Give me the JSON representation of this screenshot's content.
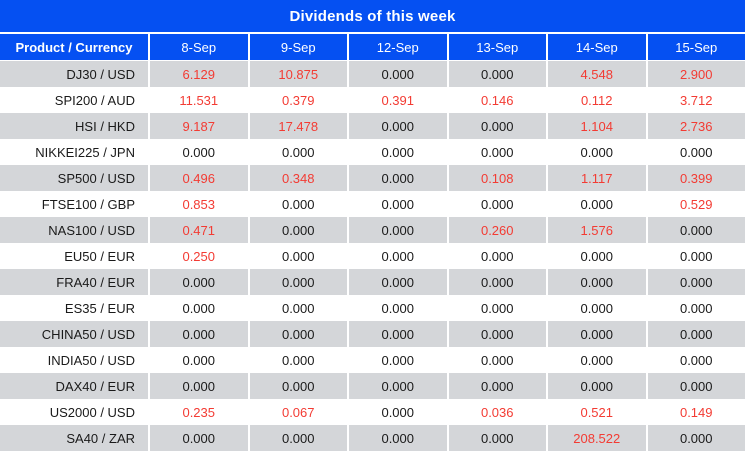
{
  "title": "Dividends of this week",
  "colors": {
    "header_blue": "#0550F2",
    "stripe_gray": "#d4d6d9",
    "value_red": "#f33b33",
    "text_dark": "#1a1a1a",
    "header_text": "#ffffff"
  },
  "table": {
    "corner_header": "Product / Currency",
    "date_headers": [
      "8-Sep",
      "9-Sep",
      "12-Sep",
      "13-Sep",
      "14-Sep",
      "15-Sep"
    ],
    "rows": [
      {
        "product": "DJ30 / USD",
        "values": [
          "6.129",
          "10.875",
          "0.000",
          "0.000",
          "4.548",
          "2.900"
        ]
      },
      {
        "product": "SPI200 / AUD",
        "values": [
          "11.531",
          "0.379",
          "0.391",
          "0.146",
          "0.112",
          "3.712"
        ]
      },
      {
        "product": "HSI / HKD",
        "values": [
          "9.187",
          "17.478",
          "0.000",
          "0.000",
          "1.104",
          "2.736"
        ]
      },
      {
        "product": "NIKKEI225 / JPN",
        "values": [
          "0.000",
          "0.000",
          "0.000",
          "0.000",
          "0.000",
          "0.000"
        ]
      },
      {
        "product": "SP500 / USD",
        "values": [
          "0.496",
          "0.348",
          "0.000",
          "0.108",
          "1.117",
          "0.399"
        ]
      },
      {
        "product": "FTSE100 / GBP",
        "values": [
          "0.853",
          "0.000",
          "0.000",
          "0.000",
          "0.000",
          "0.529"
        ]
      },
      {
        "product": "NAS100 / USD",
        "values": [
          "0.471",
          "0.000",
          "0.000",
          "0.260",
          "1.576",
          "0.000"
        ]
      },
      {
        "product": "EU50 / EUR",
        "values": [
          "0.250",
          "0.000",
          "0.000",
          "0.000",
          "0.000",
          "0.000"
        ]
      },
      {
        "product": "FRA40 / EUR",
        "values": [
          "0.000",
          "0.000",
          "0.000",
          "0.000",
          "0.000",
          "0.000"
        ]
      },
      {
        "product": "ES35 / EUR",
        "values": [
          "0.000",
          "0.000",
          "0.000",
          "0.000",
          "0.000",
          "0.000"
        ]
      },
      {
        "product": "CHINA50 / USD",
        "values": [
          "0.000",
          "0.000",
          "0.000",
          "0.000",
          "0.000",
          "0.000"
        ]
      },
      {
        "product": "INDIA50 / USD",
        "values": [
          "0.000",
          "0.000",
          "0.000",
          "0.000",
          "0.000",
          "0.000"
        ]
      },
      {
        "product": "DAX40 / EUR",
        "values": [
          "0.000",
          "0.000",
          "0.000",
          "0.000",
          "0.000",
          "0.000"
        ]
      },
      {
        "product": "US2000 / USD",
        "values": [
          "0.235",
          "0.067",
          "0.000",
          "0.036",
          "0.521",
          "0.149"
        ]
      },
      {
        "product": "SA40 / ZAR",
        "values": [
          "0.000",
          "0.000",
          "0.000",
          "0.000",
          "208.522",
          "0.000"
        ]
      }
    ]
  },
  "chart_data": {
    "type": "table",
    "title": "Dividends of this week",
    "columns": [
      "Product / Currency",
      "8-Sep",
      "9-Sep",
      "12-Sep",
      "13-Sep",
      "14-Sep",
      "15-Sep"
    ],
    "rows": [
      [
        "DJ30 / USD",
        6.129,
        10.875,
        0.0,
        0.0,
        4.548,
        2.9
      ],
      [
        "SPI200 / AUD",
        11.531,
        0.379,
        0.391,
        0.146,
        0.112,
        3.712
      ],
      [
        "HSI / HKD",
        9.187,
        17.478,
        0.0,
        0.0,
        1.104,
        2.736
      ],
      [
        "NIKKEI225 / JPN",
        0.0,
        0.0,
        0.0,
        0.0,
        0.0,
        0.0
      ],
      [
        "SP500 / USD",
        0.496,
        0.348,
        0.0,
        0.108,
        1.117,
        0.399
      ],
      [
        "FTSE100 / GBP",
        0.853,
        0.0,
        0.0,
        0.0,
        0.0,
        0.529
      ],
      [
        "NAS100 / USD",
        0.471,
        0.0,
        0.0,
        0.26,
        1.576,
        0.0
      ],
      [
        "EU50 / EUR",
        0.25,
        0.0,
        0.0,
        0.0,
        0.0,
        0.0
      ],
      [
        "FRA40 / EUR",
        0.0,
        0.0,
        0.0,
        0.0,
        0.0,
        0.0
      ],
      [
        "ES35 / EUR",
        0.0,
        0.0,
        0.0,
        0.0,
        0.0,
        0.0
      ],
      [
        "CHINA50 / USD",
        0.0,
        0.0,
        0.0,
        0.0,
        0.0,
        0.0
      ],
      [
        "INDIA50 / USD",
        0.0,
        0.0,
        0.0,
        0.0,
        0.0,
        0.0
      ],
      [
        "DAX40 / EUR",
        0.0,
        0.0,
        0.0,
        0.0,
        0.0,
        0.0
      ],
      [
        "US2000 / USD",
        0.235,
        0.067,
        0.0,
        0.036,
        0.521,
        0.149
      ],
      [
        "SA40 / ZAR",
        0.0,
        0.0,
        0.0,
        0.0,
        208.522,
        0.0
      ]
    ],
    "value_color_rule": "non-zero values rendered red, zero values rendered black",
    "stripe": "alternating gray/white rows starting gray"
  }
}
